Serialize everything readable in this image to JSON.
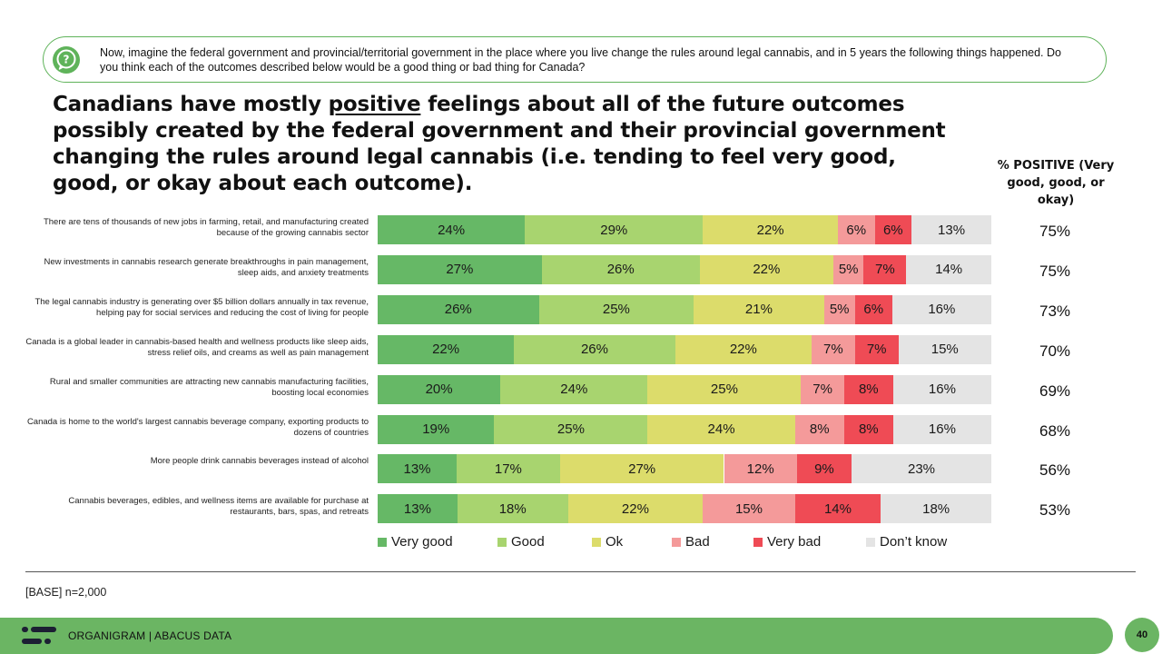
{
  "question": "Now, imagine the federal government and provincial/territorial government in the place where you live change the rules around legal cannabis, and in 5 years the following things happened.  Do you think each of the outcomes described below would be a good thing or bad thing for Canada?",
  "headline": {
    "before": "Canadians have mostly ",
    "emphasis": "positive",
    "after": " feelings about all of the future outcomes possibly created by the federal government and their provincial government changing the rules around legal cannabis (i.e. tending to feel very good, good, or okay about each outcome)."
  },
  "positive_header": "% POSITIVE (Very good, good, or okay)",
  "chart_data": {
    "type": "bar",
    "orientation": "horizontal",
    "stacked": true,
    "unit": "%",
    "categories": [
      "There are tens of thousands of new jobs in farming, retail, and manufacturing created because of the growing cannabis sector",
      "New investments in cannabis research generate breakthroughs in pain management, sleep aids, and anxiety treatments",
      "The legal cannabis industry is generating over $5 billion dollars annually in tax revenue, helping pay for social services and reducing the cost of living for people",
      "Canada is a global leader in cannabis-based health and wellness products like sleep aids, stress relief oils, and creams as well as pain management",
      "Rural and smaller communities are attracting new cannabis manufacturing facilities, boosting local economies",
      "Canada is home to the world's largest cannabis beverage company, exporting products to dozens of countries",
      "More people drink cannabis beverages instead of alcohol",
      "Cannabis beverages, edibles, and wellness items are available for purchase at restaurants, bars, spas, and retreats"
    ],
    "series": [
      {
        "name": "Very good",
        "color": "#66b866",
        "values": [
          24,
          27,
          26,
          22,
          20,
          19,
          13,
          13
        ]
      },
      {
        "name": "Good",
        "color": "#a8d46f",
        "values": [
          29,
          26,
          25,
          26,
          24,
          25,
          17,
          18
        ]
      },
      {
        "name": "Ok",
        "color": "#dcdc6b",
        "values": [
          22,
          22,
          21,
          22,
          25,
          24,
          27,
          22
        ]
      },
      {
        "name": "Bad",
        "color": "#f49a9a",
        "values": [
          6,
          5,
          5,
          7,
          7,
          8,
          12,
          15
        ]
      },
      {
        "name": "Very bad",
        "color": "#ef4b55",
        "values": [
          6,
          7,
          6,
          7,
          8,
          8,
          9,
          14
        ]
      },
      {
        "name": "Don’t know",
        "color": "#e4e4e4",
        "values": [
          13,
          14,
          16,
          15,
          16,
          16,
          23,
          18
        ]
      }
    ],
    "positive": [
      75,
      75,
      73,
      70,
      69,
      68,
      56,
      53
    ],
    "legend_position": "bottom"
  },
  "base_note": "[BASE] n=2,000",
  "footer": {
    "text": "ORGANIGRAM  |  ABACUS DATA",
    "page": "40"
  }
}
